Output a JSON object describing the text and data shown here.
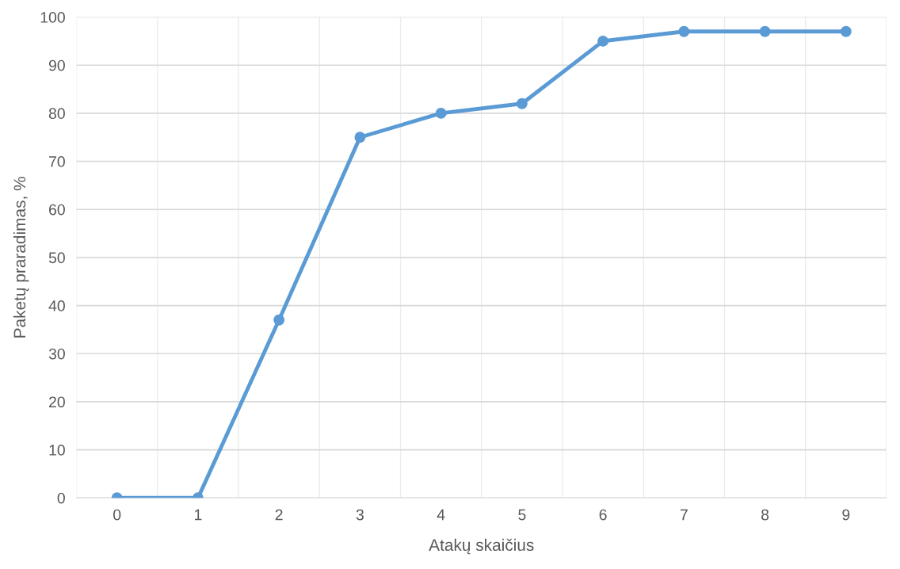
{
  "chart_data": {
    "type": "line",
    "xlabel": "Atakų skaičius",
    "ylabel": "Paketų praradimas, %",
    "categories": [
      "0",
      "1",
      "2",
      "3",
      "4",
      "5",
      "6",
      "7",
      "8",
      "9"
    ],
    "series": [
      {
        "color": "#5b9bd5",
        "values": [
          0,
          0,
          37,
          75,
          80,
          82,
          95,
          97,
          97,
          97
        ]
      }
    ],
    "ylim": [
      0,
      100
    ],
    "yticks": [
      0,
      10,
      20,
      30,
      40,
      50,
      60,
      70,
      80,
      90,
      100
    ],
    "grid": true,
    "marker": "circle",
    "line_style": "solid"
  }
}
